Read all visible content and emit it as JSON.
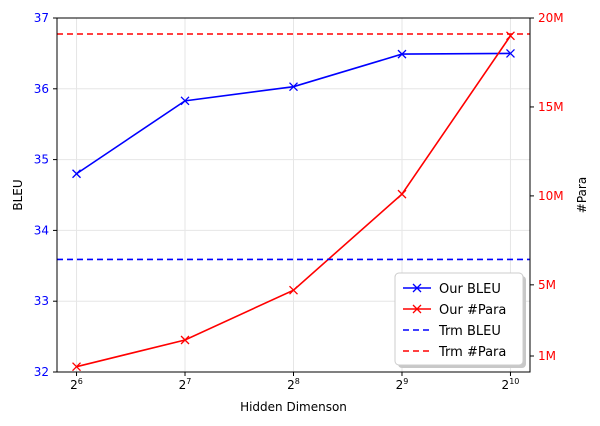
{
  "chart_data": {
    "type": "line",
    "x_base": "2",
    "x_exponents": [
      6,
      7,
      8,
      9,
      10
    ],
    "xlabel": "Hidden Dimenson",
    "ylabel_left": "BLEU",
    "ylabel_right": "#Para",
    "ylim_left": [
      32,
      37
    ],
    "ylim_right": [
      0.1,
      20
    ],
    "yticks_left": [
      "32",
      "33",
      "34",
      "35",
      "36",
      "37"
    ],
    "yticks_right": [
      {
        "value": 1,
        "label": "1M"
      },
      {
        "value": 5,
        "label": "5M"
      },
      {
        "value": 10,
        "label": "10M"
      },
      {
        "value": 15,
        "label": "15M"
      },
      {
        "value": 20,
        "label": "20M"
      }
    ],
    "right_axis_unit": "M",
    "grid": true,
    "legend_position": "bottom-right",
    "colors": {
      "left_axis": "#0000ff",
      "right_axis": "#ff0000"
    },
    "series": [
      {
        "name": "Our BLEU",
        "axis": "left",
        "color": "#0000ff",
        "style": "solid",
        "marker": "x",
        "values": [
          34.8,
          35.83,
          36.03,
          36.49,
          36.5
        ]
      },
      {
        "name": "Our #Para",
        "axis": "right",
        "color": "#ff0000",
        "style": "solid",
        "marker": "x",
        "values": [
          0.4,
          1.9,
          4.7,
          10.1,
          19.0
        ]
      },
      {
        "name": "Trm BLEU",
        "axis": "left",
        "color": "#0000ff",
        "style": "dashed",
        "values": [
          33.59
        ]
      },
      {
        "name": "Trm #Para",
        "axis": "right",
        "color": "#ff0000",
        "style": "dashed",
        "values": [
          19.1
        ]
      }
    ]
  }
}
